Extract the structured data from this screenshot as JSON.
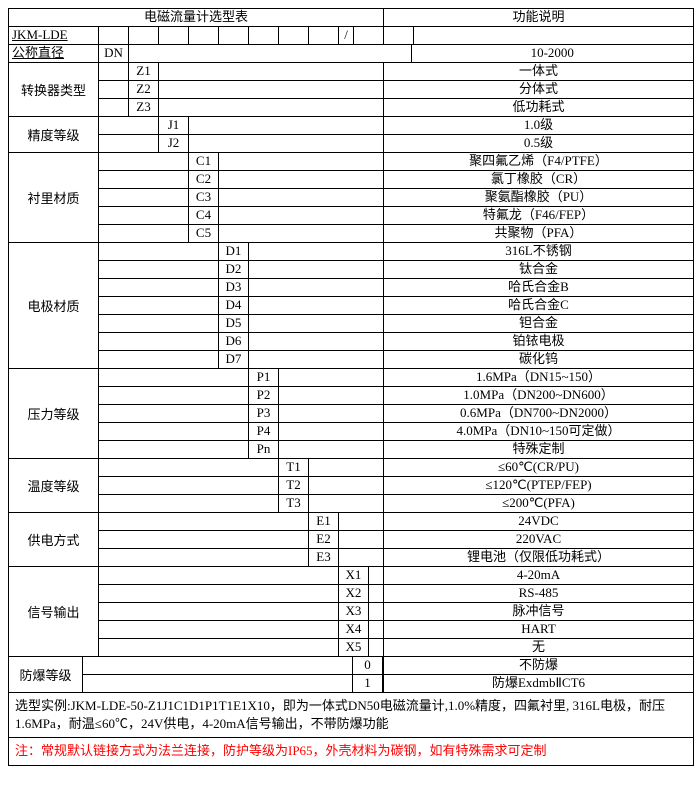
{
  "title_left": "电磁流量计选型表",
  "title_right": "功能说明",
  "model": "JKM-LDE",
  "header_slash": "/",
  "nominal_diameter": {
    "label": "公称直径",
    "code": "DN",
    "desc": "10-2000"
  },
  "converter": {
    "label": "转换器类型",
    "rows": [
      {
        "code": "Z1",
        "desc": "一体式"
      },
      {
        "code": "Z2",
        "desc": "分体式"
      },
      {
        "code": "Z3",
        "desc": "低功耗式"
      }
    ]
  },
  "accuracy": {
    "label": "精度等级",
    "rows": [
      {
        "code": "J1",
        "desc": "1.0级"
      },
      {
        "code": "J2",
        "desc": "0.5级"
      }
    ]
  },
  "liner": {
    "label": "衬里材质",
    "rows": [
      {
        "code": "C1",
        "desc": "聚四氟乙烯（F4/PTFE）"
      },
      {
        "code": "C2",
        "desc": "氯丁橡胶（CR）"
      },
      {
        "code": "C3",
        "desc": "聚氨酯橡胶（PU）"
      },
      {
        "code": "C4",
        "desc": "特氟龙（F46/FEP）"
      },
      {
        "code": "C5",
        "desc": "共聚物（PFA）"
      }
    ]
  },
  "electrode": {
    "label": "电极材质",
    "rows": [
      {
        "code": "D1",
        "desc": "316L不锈钢"
      },
      {
        "code": "D2",
        "desc": "钛合金"
      },
      {
        "code": "D3",
        "desc": "哈氏合金B"
      },
      {
        "code": "D4",
        "desc": "哈氏合金C"
      },
      {
        "code": "D5",
        "desc": "钽合金"
      },
      {
        "code": "D6",
        "desc": "铂铱电极"
      },
      {
        "code": "D7",
        "desc": "碳化钨"
      }
    ]
  },
  "pressure": {
    "label": "压力等级",
    "rows": [
      {
        "code": "P1",
        "desc": "1.6MPa（DN15~150）"
      },
      {
        "code": "P2",
        "desc": "1.0MPa（DN200~DN600）"
      },
      {
        "code": "P3",
        "desc": "0.6MPa（DN700~DN2000）"
      },
      {
        "code": "P4",
        "desc": "4.0MPa（DN10~150可定做）"
      },
      {
        "code": "Pn",
        "desc": "特殊定制"
      }
    ]
  },
  "temperature": {
    "label": "温度等级",
    "rows": [
      {
        "code": "T1",
        "desc": "≤60℃(CR/PU)"
      },
      {
        "code": "T2",
        "desc": "≤120℃(PTEP/FEP)"
      },
      {
        "code": "T3",
        "desc": "≤200℃(PFA)"
      }
    ]
  },
  "power": {
    "label": "供电方式",
    "rows": [
      {
        "code": "E1",
        "desc": "24VDC"
      },
      {
        "code": "E2",
        "desc": "220VAC"
      },
      {
        "code": "E3",
        "desc": "锂电池（仅限低功耗式）"
      }
    ]
  },
  "output": {
    "label": "信号输出",
    "rows": [
      {
        "code": "X1",
        "desc": "4-20mA"
      },
      {
        "code": "X2",
        "desc": "RS-485"
      },
      {
        "code": "X3",
        "desc": "脉冲信号"
      },
      {
        "code": "X4",
        "desc": "HART"
      },
      {
        "code": "X5",
        "desc": "无"
      }
    ]
  },
  "explosion": {
    "label": "防爆等级",
    "rows": [
      {
        "code": "0",
        "desc": "不防爆"
      },
      {
        "code": "1",
        "desc": "防爆ExdmbⅡCT6"
      }
    ]
  },
  "footer1": "选型实例:JKM-LDE-50-Z1J1C1D1P1T1E1X10，即为一体式DN50电磁流量计,1.0%精度，四氟衬里, 316L电极，耐压1.6MPa，耐温≤60℃，24V供电，4-20mA信号输出，不带防爆功能",
  "footer2": "注：常规默认链接方式为法兰连接，防护等级为IP65，外壳材料为碳钢，如有特殊需求可定制"
}
